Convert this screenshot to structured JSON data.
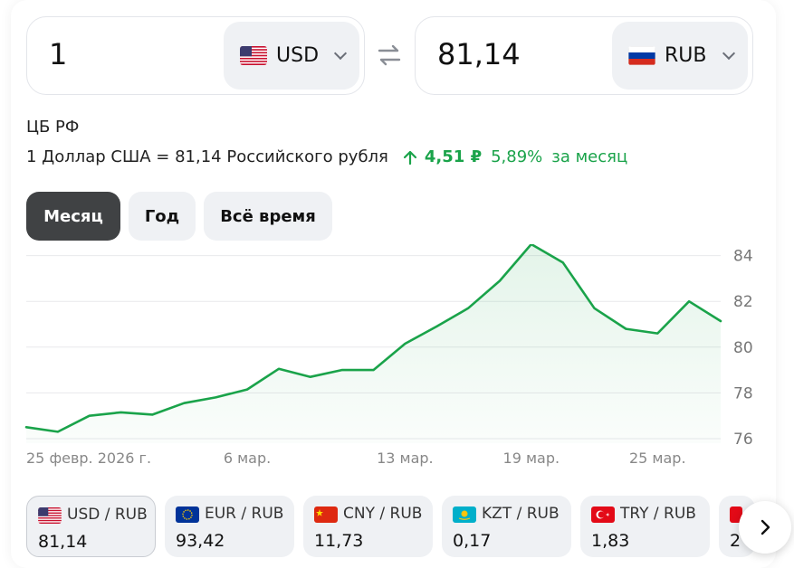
{
  "converter": {
    "from_amount": "1",
    "from_currency": "USD",
    "to_amount": "81,14",
    "to_currency": "RUB"
  },
  "source": "ЦБ РФ",
  "rate_text": "1 Доллар США = 81,14 Российского рубля",
  "change": {
    "absolute": "4,51 ₽",
    "percent": "5,89%",
    "period": "за месяц",
    "direction": "up",
    "color": "#1aa34a"
  },
  "period_tabs": [
    {
      "label": "Месяц",
      "active": true
    },
    {
      "label": "Год",
      "active": false
    },
    {
      "label": "Всё время",
      "active": false
    }
  ],
  "chart_data": {
    "type": "area",
    "x_tick_labels": [
      "25 февр. 2026 г.",
      "6 мар.",
      "13 мар.",
      "19 мар.",
      "25 мар."
    ],
    "y_tick_labels": [
      "84",
      "82",
      "80",
      "78",
      "76"
    ],
    "ylim": [
      75.8,
      84.5
    ],
    "grid": true,
    "line_color": "#1aa34a",
    "values": [
      76.5,
      76.3,
      77.0,
      77.15,
      77.05,
      77.55,
      77.8,
      78.15,
      79.05,
      78.7,
      79.0,
      79.0,
      80.15,
      80.9,
      81.7,
      82.9,
      84.5,
      83.7,
      81.7,
      80.8,
      80.6,
      82.0,
      81.14
    ]
  },
  "pairs": [
    {
      "label": "USD / RUB",
      "value": "81,14",
      "flag": "us-flag",
      "active": true
    },
    {
      "label": "EUR / RUB",
      "value": "93,42",
      "flag": "eu-flag",
      "active": false
    },
    {
      "label": "CNY / RUB",
      "value": "11,73",
      "flag": "cn-flag",
      "active": false
    },
    {
      "label": "KZT / RUB",
      "value": "0,17",
      "flag": "kz-flag",
      "active": false
    },
    {
      "label": "TRY / RUB",
      "value": "1,83",
      "flag": "tr-flag",
      "active": false
    },
    {
      "label": "",
      "value": "2",
      "flag": "red-flag",
      "active": false
    }
  ]
}
